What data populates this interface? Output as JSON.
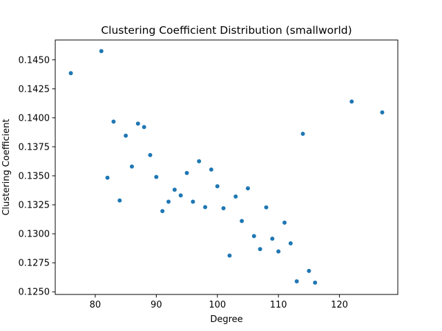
{
  "chart_data": {
    "type": "scatter",
    "title": "Clustering Coefficient Distribution (smallworld)",
    "xlabel": "Degree",
    "ylabel": "Clustering Coefficient",
    "xlim": [
      73.45,
      129.55
    ],
    "ylim": [
      0.12477,
      0.14671
    ],
    "xticks": [
      80,
      90,
      100,
      110,
      120
    ],
    "yticks": [
      0.125,
      0.1275,
      0.13,
      0.1325,
      0.135,
      0.1375,
      0.14,
      0.1425,
      0.145
    ],
    "ytick_labels": [
      "0.1250",
      "0.1275",
      "0.1300",
      "0.1325",
      "0.1350",
      "0.1375",
      "0.1400",
      "0.1425",
      "0.1450"
    ],
    "grid": false,
    "marker_color": "#1f77b4",
    "points": [
      {
        "x": 76,
        "y": 0.14385
      },
      {
        "x": 81,
        "y": 0.14575
      },
      {
        "x": 82,
        "y": 0.13483
      },
      {
        "x": 83,
        "y": 0.13967
      },
      {
        "x": 84,
        "y": 0.13287
      },
      {
        "x": 85,
        "y": 0.13846
      },
      {
        "x": 86,
        "y": 0.1358
      },
      {
        "x": 87,
        "y": 0.1395
      },
      {
        "x": 88,
        "y": 0.1392
      },
      {
        "x": 89,
        "y": 0.13679
      },
      {
        "x": 90,
        "y": 0.1349
      },
      {
        "x": 91,
        "y": 0.13196
      },
      {
        "x": 92,
        "y": 0.13277
      },
      {
        "x": 93,
        "y": 0.1338
      },
      {
        "x": 94,
        "y": 0.13331
      },
      {
        "x": 95,
        "y": 0.13524
      },
      {
        "x": 96,
        "y": 0.13277
      },
      {
        "x": 97,
        "y": 0.13625
      },
      {
        "x": 98,
        "y": 0.1323
      },
      {
        "x": 99,
        "y": 0.13554
      },
      {
        "x": 100,
        "y": 0.1341
      },
      {
        "x": 101,
        "y": 0.1322
      },
      {
        "x": 102,
        "y": 0.12812
      },
      {
        "x": 103,
        "y": 0.13321
      },
      {
        "x": 104,
        "y": 0.1311
      },
      {
        "x": 105,
        "y": 0.13392
      },
      {
        "x": 106,
        "y": 0.1298
      },
      {
        "x": 107,
        "y": 0.12868
      },
      {
        "x": 108,
        "y": 0.13228
      },
      {
        "x": 109,
        "y": 0.12958
      },
      {
        "x": 110,
        "y": 0.12848
      },
      {
        "x": 111,
        "y": 0.13096
      },
      {
        "x": 112,
        "y": 0.12918
      },
      {
        "x": 113,
        "y": 0.1259
      },
      {
        "x": 114,
        "y": 0.13862
      },
      {
        "x": 115,
        "y": 0.1268
      },
      {
        "x": 116,
        "y": 0.12579
      },
      {
        "x": 122,
        "y": 0.1414
      },
      {
        "x": 127,
        "y": 0.14047
      }
    ]
  }
}
